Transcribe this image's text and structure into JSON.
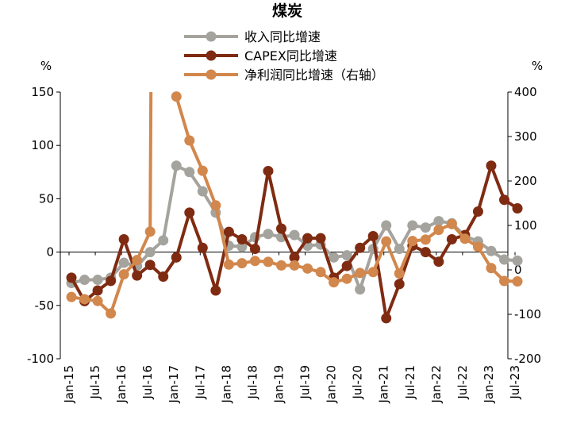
{
  "chart_data": {
    "type": "line",
    "title": "煤炭",
    "left_axis": {
      "unit": "%",
      "ylim": [
        -100,
        150
      ],
      "ticks": [
        -100,
        -50,
        0,
        50,
        100,
        150
      ]
    },
    "right_axis": {
      "unit": "%",
      "ylim": [
        -200,
        400
      ],
      "ticks": [
        -200,
        -100,
        0,
        100,
        200,
        300,
        400
      ]
    },
    "x_tick_labels": [
      "Jan-15",
      "Jul-15",
      "Jan-16",
      "Jul-16",
      "Jan-17",
      "Jul-17",
      "Jan-18",
      "Jul-18",
      "Jan-19",
      "Jul-19",
      "Jan-20",
      "Jul-20",
      "Jan-21",
      "Jul-21",
      "Jan-22",
      "Jul-22",
      "Jan-23",
      "Jul-23"
    ],
    "x": [
      "Mar-15",
      "Jun-15",
      "Sep-15",
      "Dec-15",
      "Mar-16",
      "Jun-16",
      "Sep-16",
      "Dec-16",
      "Mar-17",
      "Jun-17",
      "Sep-17",
      "Dec-17",
      "Mar-18",
      "Jun-18",
      "Sep-18",
      "Dec-18",
      "Mar-19",
      "Jun-19",
      "Sep-19",
      "Dec-19",
      "Mar-20",
      "Jun-20",
      "Sep-20",
      "Dec-20",
      "Mar-21",
      "Jun-21",
      "Sep-21",
      "Dec-21",
      "Mar-22",
      "Jun-22",
      "Sep-22",
      "Dec-22",
      "Mar-23",
      "Jun-23",
      "Sep-23"
    ],
    "series": [
      {
        "name": "收入同比增速",
        "axis": "left",
        "color": "#a5a39d",
        "values": [
          -29,
          -26,
          -26,
          -24,
          -10,
          -13,
          0,
          11,
          81,
          75,
          57,
          37,
          6,
          5,
          14,
          17,
          14,
          16,
          6,
          7,
          -5,
          -3,
          -35,
          3,
          25,
          3,
          25,
          23,
          29,
          27,
          15,
          10,
          1,
          -7,
          -8
        ]
      },
      {
        "name": "CAPEX同比增速",
        "axis": "left",
        "color": "#7f2b12",
        "values": [
          -24,
          -46,
          -36,
          -27,
          12,
          -22,
          -12,
          -23,
          -5,
          37,
          4,
          -36,
          19,
          12,
          3,
          76,
          22,
          -5,
          13,
          13,
          -24,
          -13,
          4,
          15,
          -62,
          -30,
          6,
          0,
          -9,
          12,
          16,
          38,
          81,
          49,
          41
        ]
      },
      {
        "name": "净利润同比增速（右轴）",
        "axis": "right",
        "color": "#d2874c",
        "values": [
          -61,
          -66,
          -70,
          -98,
          -10,
          22,
          86,
          null,
          390,
          291,
          223,
          145,
          12,
          15,
          20,
          18,
          10,
          10,
          3,
          -5,
          -28,
          -20,
          -7,
          -5,
          64,
          -8,
          65,
          68,
          90,
          103,
          70,
          52,
          4,
          -25,
          -26
        ]
      }
    ],
    "spike": {
      "series": "净利润同比增速（右轴）",
      "from": "Sep-16",
      "to_left_axis_value": 150
    }
  }
}
